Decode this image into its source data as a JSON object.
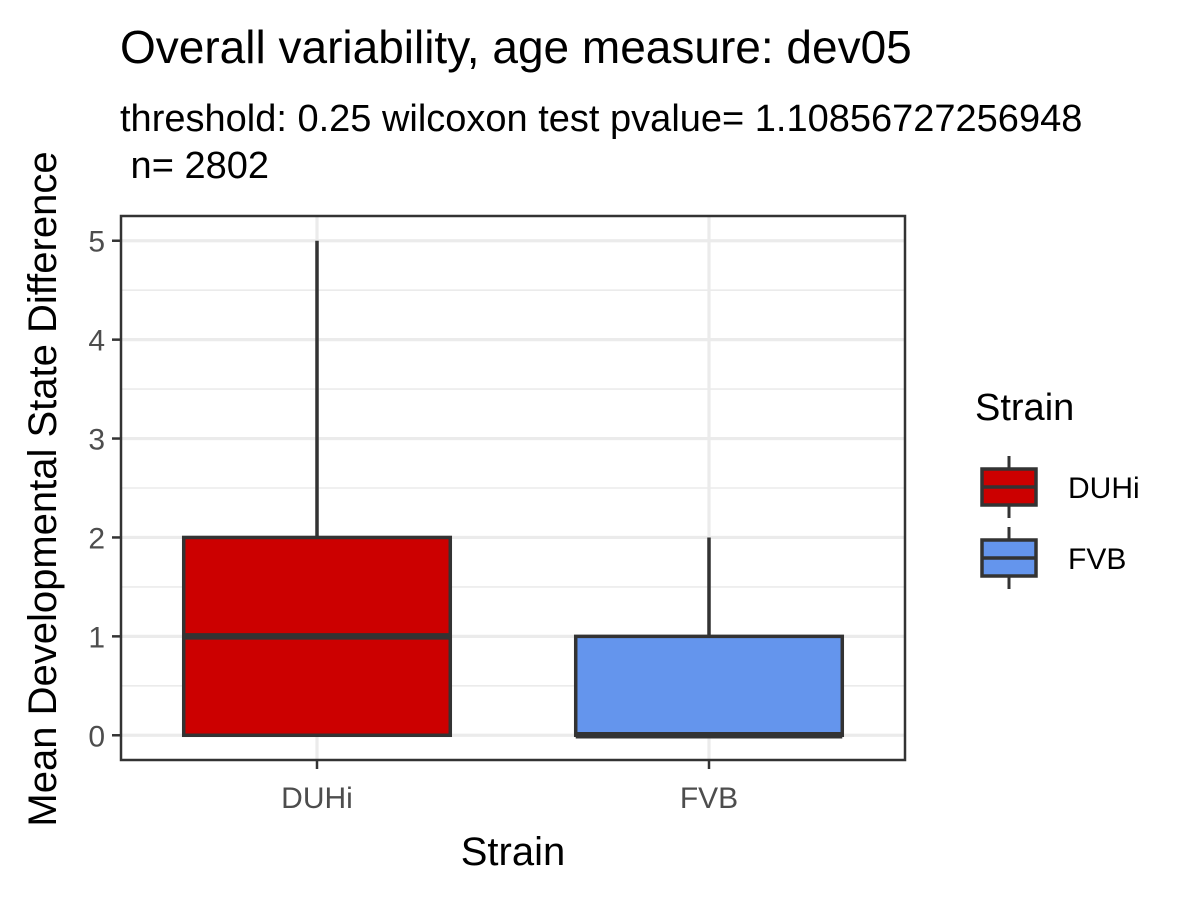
{
  "chart_data": {
    "type": "boxplot",
    "title": "Overall variability, age measure: dev05",
    "subtitle_line1": "threshold: 0.25 wilcoxon test pvalue= 1.10856727256948",
    "subtitle_line2": " n= 2802",
    "xlabel": "Strain",
    "ylabel": "Mean Developmental State Difference",
    "ylim": [
      -0.25,
      5.25
    ],
    "y_ticks": [
      0,
      1,
      2,
      3,
      4,
      5
    ],
    "y_tick_labels": [
      "0",
      "1",
      "2",
      "3",
      "4",
      "5"
    ],
    "categories": [
      "DUHi",
      "FVB"
    ],
    "grid": true,
    "legend": {
      "title": "Strain",
      "position": "right",
      "entries": [
        "DUHi",
        "FVB"
      ]
    },
    "series": [
      {
        "name": "DUHi",
        "color": "#cc0000",
        "min": 0,
        "q1": 0,
        "median": 1,
        "q3": 2,
        "max": 5
      },
      {
        "name": "FVB",
        "color": "#6495ed",
        "min": 0,
        "q1": 0,
        "median": 0,
        "q3": 1,
        "max": 2
      }
    ]
  }
}
